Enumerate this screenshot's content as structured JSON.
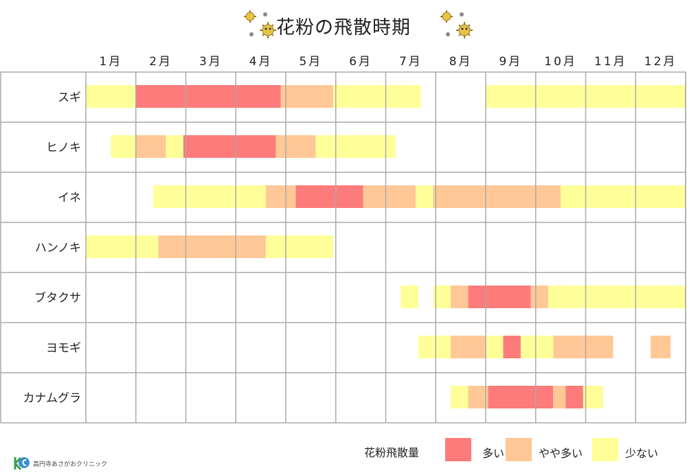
{
  "title": "花粉の飛散時期",
  "icons": [
    "pollen-icon",
    "pollen-icon"
  ],
  "colors": {
    "high": "#fd7b7b",
    "medium": "#ffc896",
    "low": "#ffff99",
    "grid": "#aaaaaa",
    "pollen": "#e8c34a"
  },
  "legend": {
    "title": "花粉飛散量",
    "items": [
      {
        "label": "多い",
        "level": "high"
      },
      {
        "label": "やや多い",
        "level": "medium"
      },
      {
        "label": "少ない",
        "level": "low"
      }
    ]
  },
  "clinic": {
    "logo_text": "KS",
    "name": "高円寺あさがおクリニック"
  },
  "chart_data": {
    "type": "gantt",
    "x_unit": "month",
    "xlim": [
      1,
      13
    ],
    "months": [
      "1月",
      "2月",
      "3月",
      "4月",
      "5月",
      "6月",
      "7月",
      "8月",
      "9月",
      "10月",
      "11月",
      "12月"
    ],
    "grid": true,
    "legend_position": "bottom-right",
    "rows": [
      {
        "name": "スギ",
        "segments": [
          {
            "start": 1.0,
            "end": 2.0,
            "level": "low"
          },
          {
            "start": 2.0,
            "end": 4.9,
            "level": "high"
          },
          {
            "start": 4.9,
            "end": 5.95,
            "level": "medium"
          },
          {
            "start": 5.95,
            "end": 7.7,
            "level": "low"
          },
          {
            "start": 9.0,
            "end": 13.0,
            "level": "low"
          }
        ]
      },
      {
        "name": "ヒノキ",
        "segments": [
          {
            "start": 1.5,
            "end": 2.0,
            "level": "low"
          },
          {
            "start": 2.0,
            "end": 2.6,
            "level": "medium"
          },
          {
            "start": 2.6,
            "end": 2.95,
            "level": "low"
          },
          {
            "start": 2.95,
            "end": 4.8,
            "level": "high"
          },
          {
            "start": 4.8,
            "end": 5.6,
            "level": "medium"
          },
          {
            "start": 5.6,
            "end": 7.2,
            "level": "low"
          }
        ]
      },
      {
        "name": "イネ",
        "segments": [
          {
            "start": 2.35,
            "end": 4.6,
            "level": "low"
          },
          {
            "start": 4.6,
            "end": 5.2,
            "level": "medium"
          },
          {
            "start": 5.2,
            "end": 6.55,
            "level": "high"
          },
          {
            "start": 6.55,
            "end": 7.6,
            "level": "medium"
          },
          {
            "start": 7.6,
            "end": 7.95,
            "level": "low"
          },
          {
            "start": 7.95,
            "end": 10.5,
            "level": "medium"
          },
          {
            "start": 10.5,
            "end": 13.0,
            "level": "low"
          }
        ]
      },
      {
        "name": "ハンノキ",
        "segments": [
          {
            "start": 1.0,
            "end": 2.45,
            "level": "low"
          },
          {
            "start": 2.45,
            "end": 4.6,
            "level": "medium"
          },
          {
            "start": 4.6,
            "end": 5.95,
            "level": "low"
          }
        ]
      },
      {
        "name": "ブタクサ",
        "segments": [
          {
            "start": 7.3,
            "end": 7.65,
            "level": "low"
          },
          {
            "start": 7.95,
            "end": 8.3,
            "level": "low"
          },
          {
            "start": 8.3,
            "end": 8.65,
            "level": "medium"
          },
          {
            "start": 8.65,
            "end": 9.9,
            "level": "high"
          },
          {
            "start": 9.9,
            "end": 10.25,
            "level": "medium"
          },
          {
            "start": 10.25,
            "end": 13.0,
            "level": "low"
          }
        ]
      },
      {
        "name": "ヨモギ",
        "segments": [
          {
            "start": 7.65,
            "end": 8.3,
            "level": "low"
          },
          {
            "start": 8.3,
            "end": 9.0,
            "level": "medium"
          },
          {
            "start": 9.0,
            "end": 9.35,
            "level": "low"
          },
          {
            "start": 9.35,
            "end": 9.7,
            "level": "high"
          },
          {
            "start": 9.7,
            "end": 10.35,
            "level": "low"
          },
          {
            "start": 10.35,
            "end": 11.55,
            "level": "medium"
          },
          {
            "start": 12.3,
            "end": 12.7,
            "level": "medium"
          }
        ]
      },
      {
        "name": "カナムグラ",
        "segments": [
          {
            "start": 8.3,
            "end": 8.65,
            "level": "low"
          },
          {
            "start": 8.65,
            "end": 9.05,
            "level": "medium"
          },
          {
            "start": 9.05,
            "end": 10.35,
            "level": "high"
          },
          {
            "start": 10.35,
            "end": 10.6,
            "level": "medium"
          },
          {
            "start": 10.6,
            "end": 10.95,
            "level": "high"
          },
          {
            "start": 10.95,
            "end": 11.35,
            "level": "low"
          }
        ]
      }
    ]
  }
}
